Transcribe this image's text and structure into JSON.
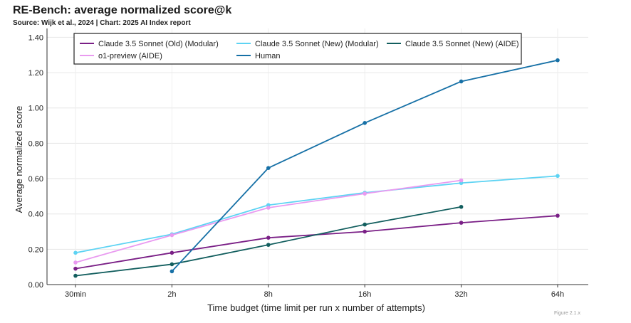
{
  "header": {
    "title": "RE-Bench: average normalized score@k",
    "subtitle": "Source: Wijk et al., 2024 | Chart: 2025 AI Index report"
  },
  "corner_note": "Figure 2.1.x",
  "chart_data": {
    "type": "line",
    "title": "RE-Bench: average normalized score@k",
    "xlabel": "Time budget (time limit per run x number of attempts)",
    "ylabel": "Average normalized score",
    "categories": [
      "30min",
      "2h",
      "8h",
      "16h",
      "32h",
      "64h"
    ],
    "ylim": [
      0,
      1.45
    ],
    "yticks": [
      "0.00",
      "0.20",
      "0.40",
      "0.60",
      "0.80",
      "1.00",
      "1.20",
      "1.40"
    ],
    "ytick_values": [
      0,
      0.2,
      0.4,
      0.6,
      0.8,
      1.0,
      1.2,
      1.4
    ],
    "grid": true,
    "legend_position": "top",
    "series": [
      {
        "name": "Claude 3.5 Sonnet (Old) (Modular)",
        "color": "#7a1f86",
        "values": [
          0.09,
          0.18,
          0.265,
          0.3,
          0.35,
          0.39
        ]
      },
      {
        "name": "Claude 3.5 Sonnet (New) (Modular)",
        "color": "#5dd3f3",
        "values": [
          0.18,
          0.285,
          0.45,
          0.52,
          0.575,
          0.615
        ]
      },
      {
        "name": "Claude 3.5 Sonnet (New) (AIDE)",
        "color": "#125e5e",
        "values": [
          0.05,
          0.115,
          0.225,
          0.34,
          0.44,
          null
        ]
      },
      {
        "name": "o1-preview (AIDE)",
        "color": "#e99af0",
        "values": [
          0.125,
          0.28,
          0.435,
          0.515,
          0.59,
          null
        ]
      },
      {
        "name": "Human",
        "color": "#1670a6",
        "values": [
          null,
          0.075,
          0.66,
          0.915,
          1.15,
          1.27
        ]
      }
    ]
  }
}
